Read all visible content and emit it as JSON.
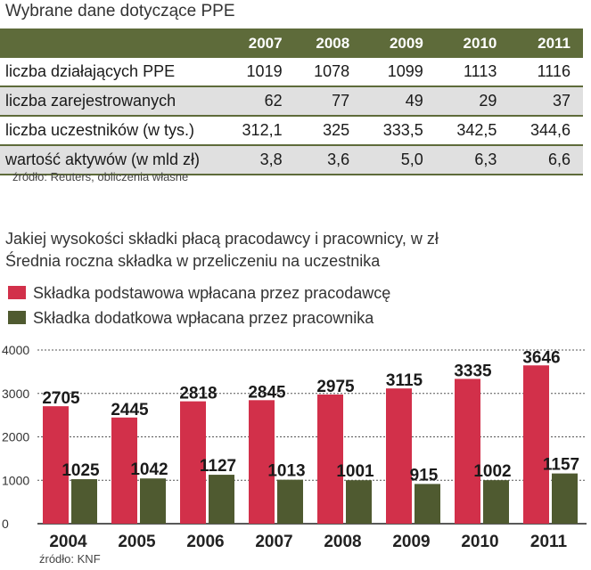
{
  "table": {
    "title": "Wybrane dane dotyczące PPE",
    "years": [
      "2007",
      "2008",
      "2009",
      "2010",
      "2011"
    ],
    "rows": [
      {
        "label": "liczba działających PPE",
        "values": [
          "1019",
          "1078",
          "1099",
          "1113",
          "1116"
        ]
      },
      {
        "label": "liczba zarejestrowanych",
        "values": [
          "62",
          "77",
          "49",
          "29",
          "37"
        ]
      },
      {
        "label": "liczba uczestników (w tys.)",
        "values": [
          "312,1",
          "325",
          "333,5",
          "342,5",
          "344,6"
        ]
      },
      {
        "label": "wartość aktywów (w mld zł)",
        "values": [
          "3,8",
          "3,6",
          "5,0",
          "6,3",
          "6,6"
        ]
      }
    ],
    "source": "źródło: Reuters, obliczenia własne"
  },
  "chart_header": {
    "subtitle1": "Jakiej wysokości składki płacą pracodawcy i pracownicy, w zł",
    "subtitle2": "Średnia roczna składka w przeliczeniu na uczestnika",
    "source": "źródło: KNF"
  },
  "chart_data": {
    "type": "bar",
    "categories": [
      "2004",
      "2005",
      "2006",
      "2007",
      "2008",
      "2009",
      "2010",
      "2011"
    ],
    "series": [
      {
        "name": "Składka podstawowa wpłacana przez pracodawcę",
        "color": "#d2304a",
        "values": [
          2705,
          2445,
          2818,
          2845,
          2975,
          3115,
          3335,
          3646
        ]
      },
      {
        "name": "Składka dodatkowa wpłacana przez pracownika",
        "color": "#4f5a30",
        "values": [
          1025,
          1042,
          1127,
          1013,
          1001,
          915,
          1002,
          1157
        ]
      }
    ],
    "ylim": [
      0,
      4000
    ],
    "yticks": [
      "0",
      "1000",
      "2000",
      "3000",
      "4000"
    ],
    "grid": true,
    "legend": "top-left"
  }
}
